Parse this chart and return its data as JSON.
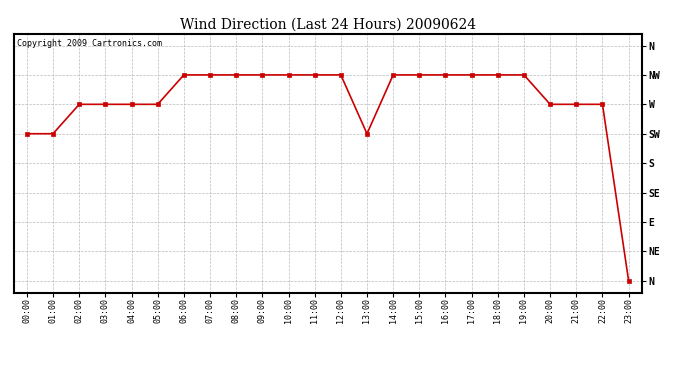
{
  "title": "Wind Direction (Last 24 Hours) 20090624",
  "copyright_text": "Copyright 2009 Cartronics.com",
  "background_color": "#ffffff",
  "plot_bg_color": "#ffffff",
  "grid_color": "#bbbbbb",
  "line_color": "#cc0000",
  "marker_color": "#cc0000",
  "ytick_labels": [
    "N",
    "NW",
    "W",
    "SW",
    "S",
    "SE",
    "E",
    "NE",
    "N"
  ],
  "ytick_positions": [
    8,
    7,
    6,
    5,
    4,
    3,
    2,
    1,
    0
  ],
  "hours": [
    0,
    1,
    2,
    3,
    4,
    5,
    6,
    7,
    8,
    9,
    10,
    11,
    12,
    13,
    14,
    15,
    16,
    17,
    18,
    19,
    20,
    21,
    22,
    23
  ],
  "wind_data": {
    "0": 5,
    "1": 5,
    "2": 6,
    "3": 6,
    "4": 6,
    "5": 6,
    "6": 7,
    "7": 7,
    "8": 7,
    "9": 7,
    "10": 7,
    "11": 7,
    "12": 7,
    "13": 5,
    "14": 7,
    "15": 7,
    "16": 7,
    "17": 7,
    "18": 7,
    "19": 7,
    "20": 6,
    "21": 6,
    "22": 6,
    "23": 0
  },
  "xlim": [
    -0.5,
    23.5
  ],
  "ylim": [
    -0.4,
    8.4
  ],
  "title_fontsize": 10,
  "copyright_fontsize": 6,
  "tick_fontsize": 6,
  "ytick_fontsize": 7
}
